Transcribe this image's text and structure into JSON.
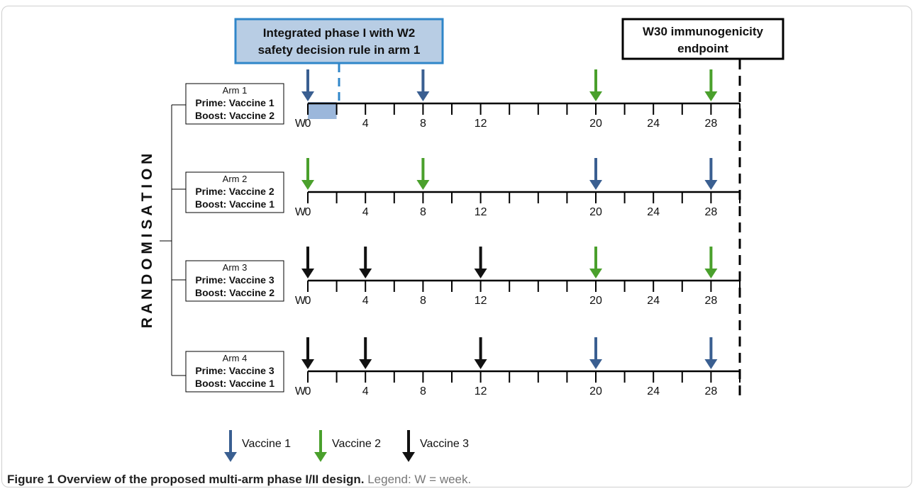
{
  "phase_box": {
    "line1": "Integrated phase I with W2",
    "line2": "safety decision rule in arm 1"
  },
  "endpoint_box": {
    "line1": "W30 immunogenicity",
    "line2": "endpoint"
  },
  "randomisation_label": "R A N D O M I S A T I O N",
  "week_prefix": "W",
  "week_labels": [
    "0",
    "4",
    "8",
    "12",
    "20",
    "24",
    "28"
  ],
  "arms": [
    {
      "name": "Arm 1",
      "prime": "Prime: Vaccine 1",
      "boost": "Boost: Vaccine 2",
      "doses": [
        {
          "week": 0,
          "vaccine": 1
        },
        {
          "week": 8,
          "vaccine": 1
        },
        {
          "week": 20,
          "vaccine": 2
        },
        {
          "week": 28,
          "vaccine": 2
        }
      ]
    },
    {
      "name": "Arm 2",
      "prime": "Prime: Vaccine 2",
      "boost": "Boost: Vaccine 1",
      "doses": [
        {
          "week": 0,
          "vaccine": 2
        },
        {
          "week": 8,
          "vaccine": 2
        },
        {
          "week": 20,
          "vaccine": 1
        },
        {
          "week": 28,
          "vaccine": 1
        }
      ]
    },
    {
      "name": "Arm 3",
      "prime": "Prime: Vaccine 3",
      "boost": "Boost: Vaccine 2",
      "doses": [
        {
          "week": 0,
          "vaccine": 3
        },
        {
          "week": 4,
          "vaccine": 3
        },
        {
          "week": 12,
          "vaccine": 3
        },
        {
          "week": 20,
          "vaccine": 2
        },
        {
          "week": 28,
          "vaccine": 2
        }
      ]
    },
    {
      "name": "Arm 4",
      "prime": "Prime: Vaccine 3",
      "boost": "Boost: Vaccine 1",
      "doses": [
        {
          "week": 0,
          "vaccine": 3
        },
        {
          "week": 4,
          "vaccine": 3
        },
        {
          "week": 12,
          "vaccine": 3
        },
        {
          "week": 20,
          "vaccine": 1
        },
        {
          "week": 28,
          "vaccine": 1
        }
      ]
    }
  ],
  "legend": [
    {
      "label": "Vaccine 1",
      "color": "#3a5f91"
    },
    {
      "label": "Vaccine 2",
      "color": "#4aa02c"
    },
    {
      "label": "Vaccine 3",
      "color": "#111111"
    }
  ],
  "colors": {
    "phase_fill": "#b8cde4",
    "phase_border": "#2f86c9",
    "phase_shade": "#9bb7db"
  },
  "caption": {
    "bold": "Figure 1 Overview of the proposed multi-arm phase I/II design.",
    "rest": " Legend: W = week."
  }
}
